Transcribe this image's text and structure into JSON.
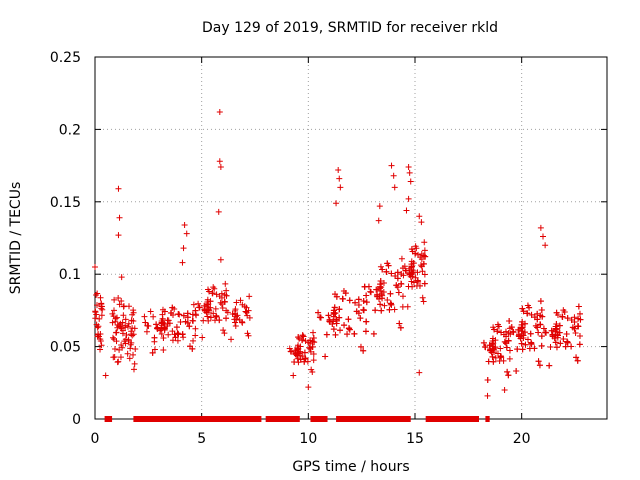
{
  "chart_data": {
    "type": "scatter",
    "title": "Day 129 of 2019, SRMTID for receiver rkld",
    "xlabel": "GPS time / hours",
    "ylabel": "SRMTID / TECUs",
    "xlim": [
      0,
      24
    ],
    "ylim": [
      0,
      0.25
    ],
    "xticks": [
      0,
      5,
      10,
      15,
      20
    ],
    "xtick_labels": [
      "0",
      "5",
      "10",
      "15",
      "20"
    ],
    "yticks": [
      0,
      0.05,
      0.1,
      0.15,
      0.2,
      0.25
    ],
    "ytick_labels": [
      "0",
      "0.05",
      "0.1",
      "0.15",
      "0.2",
      "0.25"
    ],
    "grid": true,
    "series_color": "#e00000",
    "marker": "plus",
    "clusters": [
      {
        "x_start": 0.0,
        "x_end": 0.35,
        "y_min": 0.04,
        "y_max": 0.1,
        "count": 28
      },
      {
        "x_start": 0.8,
        "x_end": 1.9,
        "y_min": 0.03,
        "y_max": 0.09,
        "count": 70
      },
      {
        "x_start": 2.3,
        "x_end": 4.8,
        "y_min": 0.04,
        "y_max": 0.085,
        "count": 110
      },
      {
        "x_start": 4.8,
        "x_end": 6.2,
        "y_min": 0.05,
        "y_max": 0.1,
        "count": 70
      },
      {
        "x_start": 6.2,
        "x_end": 7.3,
        "y_min": 0.05,
        "y_max": 0.09,
        "count": 30
      },
      {
        "x_start": 9.1,
        "x_end": 10.3,
        "y_min": 0.025,
        "y_max": 0.065,
        "count": 75
      },
      {
        "x_start": 10.4,
        "x_end": 12.8,
        "y_min": 0.035,
        "y_max": 0.1,
        "count": 120
      },
      {
        "x_start": 12.8,
        "x_end": 14.5,
        "y_min": 0.05,
        "y_max": 0.12,
        "count": 90
      },
      {
        "x_start": 14.5,
        "x_end": 15.5,
        "y_min": 0.07,
        "y_max": 0.13,
        "count": 70
      },
      {
        "x_start": 18.2,
        "x_end": 19.5,
        "y_min": 0.02,
        "y_max": 0.075,
        "count": 90
      },
      {
        "x_start": 19.5,
        "x_end": 21.0,
        "y_min": 0.025,
        "y_max": 0.09,
        "count": 110
      },
      {
        "x_start": 21.0,
        "x_end": 22.8,
        "y_min": 0.03,
        "y_max": 0.085,
        "count": 100
      }
    ],
    "outliers": [
      {
        "x": 0.0,
        "y": 0.105
      },
      {
        "x": 1.1,
        "y": 0.159
      },
      {
        "x": 1.15,
        "y": 0.139
      },
      {
        "x": 1.1,
        "y": 0.127
      },
      {
        "x": 1.25,
        "y": 0.098
      },
      {
        "x": 4.2,
        "y": 0.134
      },
      {
        "x": 4.3,
        "y": 0.128
      },
      {
        "x": 4.15,
        "y": 0.118
      },
      {
        "x": 4.1,
        "y": 0.108
      },
      {
        "x": 5.85,
        "y": 0.212
      },
      {
        "x": 5.85,
        "y": 0.178
      },
      {
        "x": 5.9,
        "y": 0.174
      },
      {
        "x": 5.8,
        "y": 0.143
      },
      {
        "x": 5.9,
        "y": 0.11
      },
      {
        "x": 11.4,
        "y": 0.172
      },
      {
        "x": 11.45,
        "y": 0.166
      },
      {
        "x": 11.5,
        "y": 0.16
      },
      {
        "x": 11.3,
        "y": 0.149
      },
      {
        "x": 13.35,
        "y": 0.147
      },
      {
        "x": 13.3,
        "y": 0.137
      },
      {
        "x": 13.9,
        "y": 0.175
      },
      {
        "x": 14.0,
        "y": 0.168
      },
      {
        "x": 14.05,
        "y": 0.16
      },
      {
        "x": 14.7,
        "y": 0.174
      },
      {
        "x": 14.75,
        "y": 0.17
      },
      {
        "x": 14.8,
        "y": 0.164
      },
      {
        "x": 14.7,
        "y": 0.152
      },
      {
        "x": 14.6,
        "y": 0.144
      },
      {
        "x": 15.2,
        "y": 0.14
      },
      {
        "x": 15.3,
        "y": 0.136
      },
      {
        "x": 20.9,
        "y": 0.132
      },
      {
        "x": 21.0,
        "y": 0.126
      },
      {
        "x": 21.1,
        "y": 0.12
      },
      {
        "x": 18.4,
        "y": 0.016
      },
      {
        "x": 19.2,
        "y": 0.02
      },
      {
        "x": 15.2,
        "y": 0.032
      },
      {
        "x": 0.5,
        "y": 0.03
      },
      {
        "x": 10.0,
        "y": 0.022
      }
    ],
    "zero_segments": [
      {
        "x_start": 0.45,
        "x_end": 0.8
      },
      {
        "x_start": 1.8,
        "x_end": 7.8
      },
      {
        "x_start": 8.0,
        "x_end": 9.6
      },
      {
        "x_start": 10.1,
        "x_end": 10.9
      },
      {
        "x_start": 11.3,
        "x_end": 14.8
      },
      {
        "x_start": 15.5,
        "x_end": 18.0
      },
      {
        "x_start": 18.3,
        "x_end": 18.5
      }
    ]
  }
}
